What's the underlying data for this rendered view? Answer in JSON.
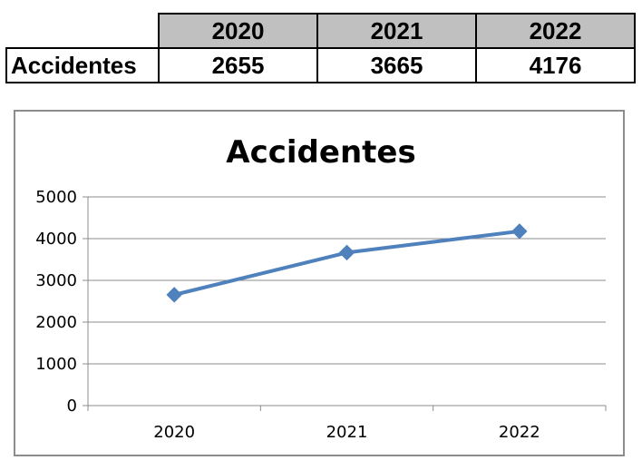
{
  "table": {
    "row_label": "Accidentes",
    "years": [
      "2020",
      "2021",
      "2022"
    ],
    "values": [
      "2655",
      "3665",
      "4176"
    ]
  },
  "chart_data": {
    "type": "line",
    "title": "Accidentes",
    "xlabel": "",
    "ylabel": "",
    "categories": [
      "2020",
      "2021",
      "2022"
    ],
    "series": [
      {
        "values": [
          2655,
          3665,
          4176
        ],
        "color": "#4f81bd",
        "marker": "diamond"
      }
    ],
    "ylim": [
      0,
      5000
    ],
    "yticks": [
      0,
      1000,
      2000,
      3000,
      4000,
      5000
    ],
    "grid": true,
    "legend": "none"
  }
}
